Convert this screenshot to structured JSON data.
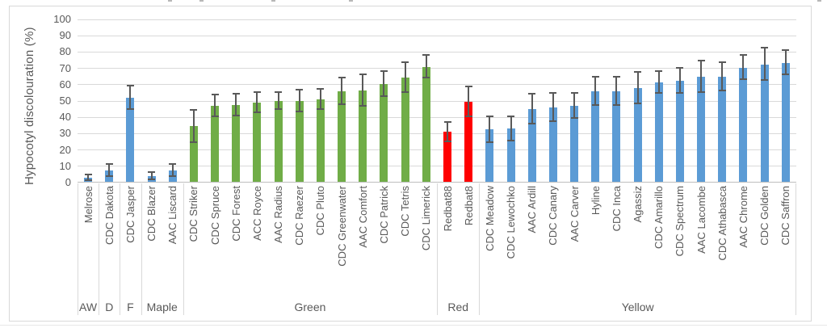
{
  "figure": {
    "ylabel": "Hypocotyl discolouration (%)"
  },
  "chart_data": {
    "type": "bar",
    "title": "",
    "xlabel": "",
    "ylabel": "Hypocotyl discolouration (%)",
    "ylim": [
      0,
      100
    ],
    "yticks": [
      0,
      10,
      20,
      30,
      40,
      50,
      60,
      70,
      80,
      90,
      100
    ],
    "grid": true,
    "legend_position": "none",
    "error_bars": true,
    "group_axis_labels": [
      "AW",
      "D",
      "F",
      "Maple",
      "Green",
      "Red",
      "Yellow"
    ],
    "groups": [
      {
        "label": "AW",
        "color": "#5B9BD5",
        "bars": [
          {
            "name": "Melrose",
            "value": 3,
            "error": 2
          }
        ]
      },
      {
        "label": "D",
        "color": "#5B9BD5",
        "bars": [
          {
            "name": "CDC Dakota",
            "value": 7.5,
            "error": 4
          }
        ]
      },
      {
        "label": "F",
        "color": "#5B9BD5",
        "bars": [
          {
            "name": "CDC Jasper",
            "value": 52,
            "error": 7.5
          }
        ]
      },
      {
        "label": "Maple",
        "color": "#5B9BD5",
        "bars": [
          {
            "name": "CDC Blazer",
            "value": 4,
            "error": 2.5
          },
          {
            "name": "AAC Liscard",
            "value": 7.5,
            "error": 4
          }
        ]
      },
      {
        "label": "Green",
        "color": "#70AD47",
        "bars": [
          {
            "name": "CDC Striker",
            "value": 34.5,
            "error": 10
          },
          {
            "name": "CDC Spruce",
            "value": 47,
            "error": 7
          },
          {
            "name": "CDC Forest",
            "value": 47.5,
            "error": 7
          },
          {
            "name": "ACC Royce",
            "value": 49,
            "error": 6.5
          },
          {
            "name": "AAC Radius",
            "value": 50,
            "error": 5.5
          },
          {
            "name": "CDC Raezer",
            "value": 50,
            "error": 7
          },
          {
            "name": "CDC Pluto",
            "value": 51,
            "error": 6.5
          },
          {
            "name": "CDC Greenwater",
            "value": 56,
            "error": 8.5
          },
          {
            "name": "AAC Comfort",
            "value": 56.5,
            "error": 10
          },
          {
            "name": "CDC Patrick",
            "value": 60.5,
            "error": 8
          },
          {
            "name": "CDC Tetris",
            "value": 64.5,
            "error": 9.5
          },
          {
            "name": "CDC Limerick",
            "value": 71,
            "error": 7
          }
        ]
      },
      {
        "label": "Red",
        "color": "#FF0000",
        "bars": [
          {
            "name": "Redbat88",
            "value": 31,
            "error": 6
          },
          {
            "name": "Redbat8",
            "value": 49.5,
            "error": 9.5
          }
        ]
      },
      {
        "label": "Yellow",
        "color": "#5B9BD5",
        "bars": [
          {
            "name": "CDC Meadow",
            "value": 32.5,
            "error": 8
          },
          {
            "name": "CDC Lewochko",
            "value": 33,
            "error": 7.5
          },
          {
            "name": "AAC Ardill",
            "value": 45,
            "error": 9.5
          },
          {
            "name": "CDC Canary",
            "value": 46,
            "error": 9
          },
          {
            "name": "AAC Carver",
            "value": 47,
            "error": 8
          },
          {
            "name": "Hyline",
            "value": 56,
            "error": 9
          },
          {
            "name": "CDC Inca",
            "value": 56,
            "error": 9
          },
          {
            "name": "Agassiz",
            "value": 58,
            "error": 10
          },
          {
            "name": "CDC Amarillo",
            "value": 61.5,
            "error": 7
          },
          {
            "name": "CDC Spectrum",
            "value": 62.5,
            "error": 8
          },
          {
            "name": "AAC Lacombe",
            "value": 65,
            "error": 10
          },
          {
            "name": "CDC Athabasca",
            "value": 65,
            "error": 9
          },
          {
            "name": "AAC Chrome",
            "value": 70.5,
            "error": 7.5
          },
          {
            "name": "CDC Golden",
            "value": 72.5,
            "error": 10
          },
          {
            "name": "CDC Saffron",
            "value": 73.5,
            "error": 7.5
          }
        ]
      }
    ],
    "colors": {
      "blue_bar": "#5B9BD5",
      "green_bar": "#70AD47",
      "red_bar": "#FF0000",
      "gridline": "#D9D9D9",
      "axis_line": "#BFBFBF",
      "error_bar": "#595959",
      "text": "#595959",
      "frame_border": "#D9D9D9"
    }
  }
}
